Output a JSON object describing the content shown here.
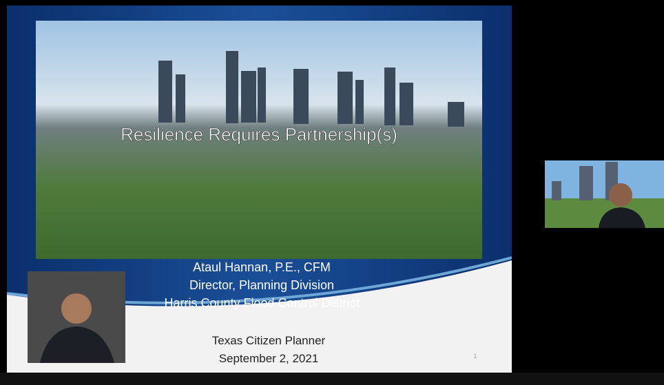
{
  "slide": {
    "title": "Resilience Requires Partnership(s)",
    "presenter": [
      "Ataul Hannan, P.E., CFM",
      "Director, Planning Division",
      "Harris County Flood Control District"
    ],
    "event": "Texas Citizen Planner",
    "date": "September 2, 2021",
    "page_number": "1"
  }
}
